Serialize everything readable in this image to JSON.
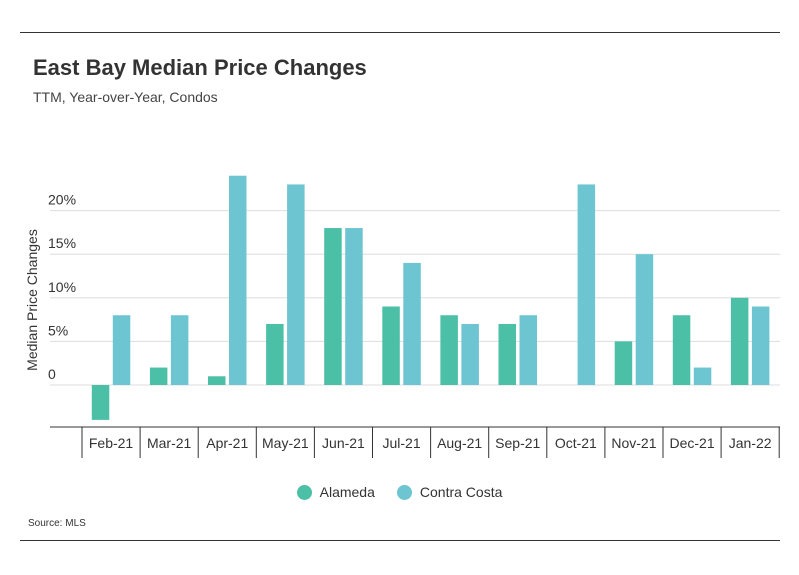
{
  "header": {
    "title": "East Bay Median Price Changes",
    "subtitle": "TTM, Year-over-Year, Condos"
  },
  "footer": {
    "source": "Source:  MLS"
  },
  "colors": {
    "alameda": "#4cbfa7",
    "contra_costa": "#6cc5d1",
    "grid": "#dddddd",
    "axis": "#333333",
    "text": "#333333"
  },
  "chart_data": {
    "type": "bar",
    "title": "East Bay Median Price Changes",
    "subtitle": "TTM, Year-over-Year, Condos",
    "xlabel": "",
    "ylabel": "Median Price Changes",
    "ylim": [
      -5,
      25
    ],
    "yticks": [
      0,
      5,
      10,
      15,
      20
    ],
    "ytick_labels": [
      "0",
      "5%",
      "10%",
      "15%",
      "20%"
    ],
    "grid": true,
    "legend_position": "bottom-center",
    "categories": [
      "Feb-21",
      "Mar-21",
      "Apr-21",
      "May-21",
      "Jun-21",
      "Jul-21",
      "Aug-21",
      "Sep-21",
      "Oct-21",
      "Nov-21",
      "Dec-21",
      "Jan-22"
    ],
    "series": [
      {
        "name": "Alameda",
        "color": "#4cbfa7",
        "values": [
          -4,
          2,
          1,
          7,
          18,
          9,
          8,
          7,
          0,
          5,
          8,
          10
        ]
      },
      {
        "name": "Contra Costa",
        "color": "#6cc5d1",
        "values": [
          8,
          8,
          24,
          23,
          18,
          14,
          7,
          8,
          23,
          15,
          2,
          9
        ]
      }
    ]
  }
}
